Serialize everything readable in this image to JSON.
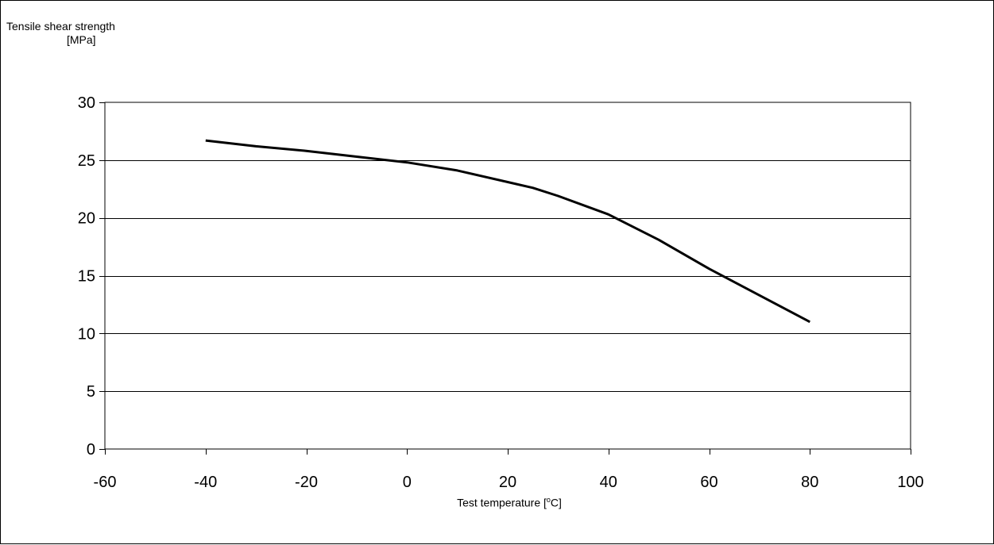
{
  "chart_data": {
    "type": "line",
    "ylabel_lines": [
      "Tensile shear strength",
      "[MPa]"
    ],
    "xlabel_pre": "Test temperature [",
    "xlabel_sup": "o",
    "xlabel_post": "C]",
    "xlim": [
      -60,
      100
    ],
    "ylim": [
      0,
      30
    ],
    "x_ticks": [
      -60,
      -40,
      -20,
      0,
      20,
      40,
      60,
      80,
      100
    ],
    "y_ticks": [
      0,
      5,
      10,
      15,
      20,
      25,
      30
    ],
    "grid": "horizontal",
    "legend": "none",
    "series": [
      {
        "x": [
          -40,
          -30,
          -20,
          -10,
          0,
          10,
          20,
          25,
          30,
          40,
          50,
          60,
          70,
          80
        ],
        "y": [
          26.7,
          26.2,
          25.8,
          25.3,
          24.8,
          24.1,
          23.1,
          22.6,
          21.9,
          20.3,
          18.1,
          15.6,
          13.3,
          11.0
        ],
        "color": "#000000"
      }
    ]
  }
}
